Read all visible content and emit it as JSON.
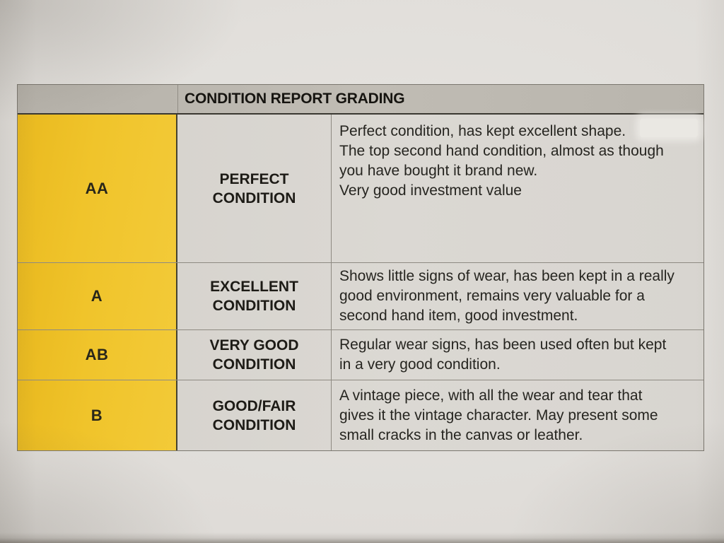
{
  "document": {
    "title": "CONDITION REPORT GRADING",
    "colors": {
      "grade_column": "#f0c42b",
      "header_bar": "#bbb7af",
      "cell_background": "#d9d6d1",
      "text": "#262520"
    },
    "grades": [
      {
        "grade": "AA",
        "condition": "PERFECT CONDITION",
        "condition_lines": [
          "PERFECT",
          "CONDITION"
        ],
        "descriptions": [
          "Perfect condition, has kept excellent shape.",
          "The top second hand condition, almost as though you have bought it brand new.",
          "Very good investment value"
        ]
      },
      {
        "grade": "A",
        "condition": "EXCELLENT CONDITION",
        "condition_lines": [
          "EXCELLENT",
          "CONDITION"
        ],
        "descriptions": [
          "Shows little signs of wear, has been kept in a really good environment, remains very valuable for a second hand item, good investment."
        ]
      },
      {
        "grade": "AB",
        "condition": "VERY GOOD CONDITION",
        "condition_lines": [
          "VERY GOOD",
          "CONDITION"
        ],
        "descriptions": [
          "Regular wear signs, has been used often but kept in a very good condition."
        ]
      },
      {
        "grade": "B",
        "condition": "GOOD/FAIR CONDITION",
        "condition_lines": [
          "GOOD/FAIR",
          "CONDITION"
        ],
        "descriptions": [
          "A vintage piece, with all the wear and tear that gives it the vintage character. May present some small cracks in the canvas or leather."
        ]
      }
    ]
  }
}
